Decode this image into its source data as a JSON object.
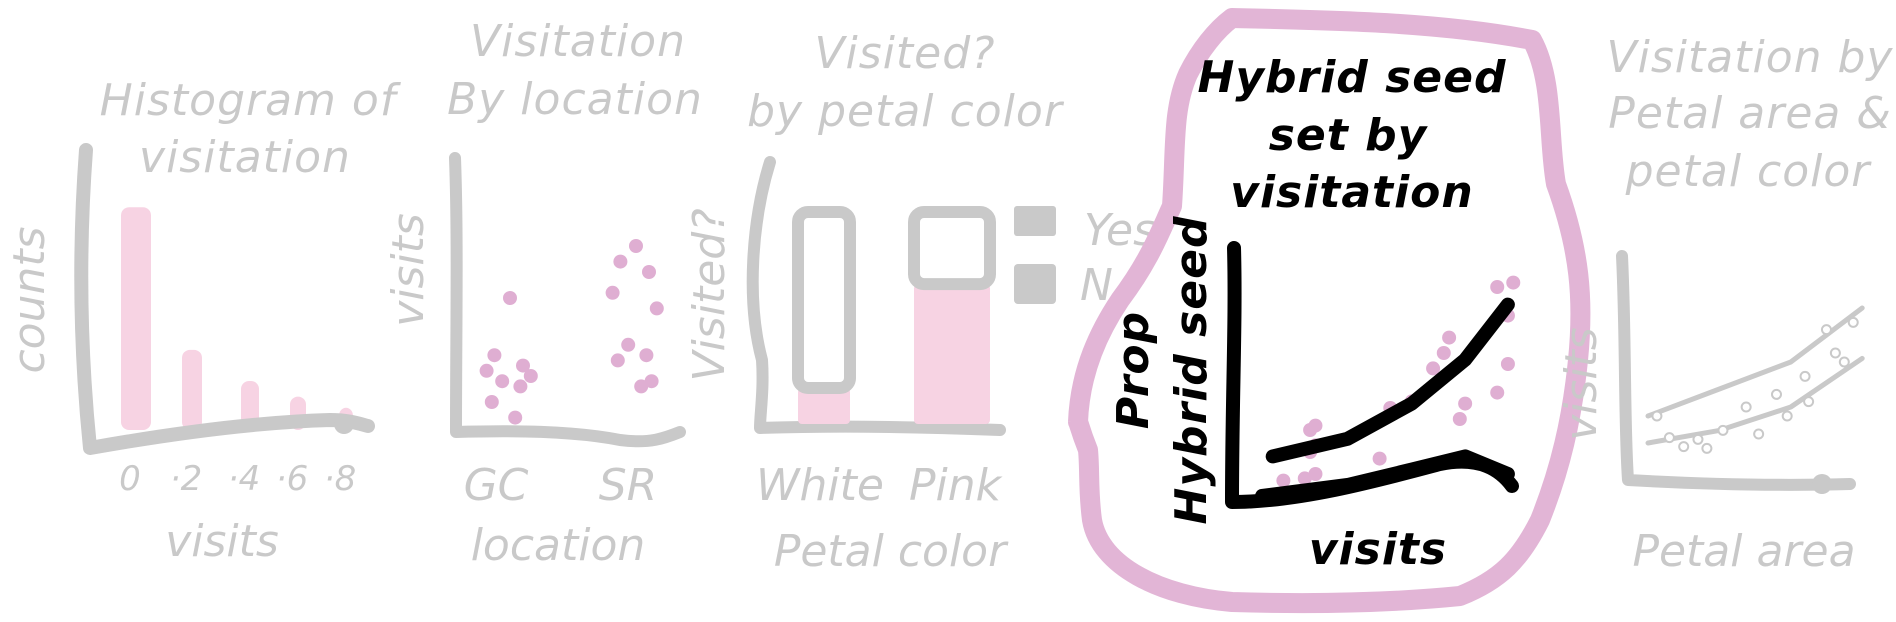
{
  "colors": {
    "grey": "#c9c9c9",
    "pink_bar": "#f7d3e3",
    "pink_dot": "#dfaed2",
    "highlight_outline": "#e2b5d6",
    "black": "#000000"
  },
  "panels": {
    "histogram": {
      "title_line1": "Histogram of",
      "title_line2": "visitation",
      "ylabel": "counts",
      "xlabel": "visits",
      "ticks": [
        "0",
        "·2",
        "·4",
        "·6",
        "·8"
      ]
    },
    "location": {
      "title_line1": "Visitation",
      "title_line2": "By location",
      "ylabel": "visits",
      "xlabel": "location",
      "ticks": [
        "GC",
        "SR"
      ]
    },
    "petal_color": {
      "title_line1": "Visited?",
      "title_line2": "by petal color",
      "ylabel": "Visited?",
      "xlabel": "Petal color",
      "ticks": [
        "White",
        "Pink"
      ],
      "legend": [
        "Yes",
        "N"
      ]
    },
    "hybrid": {
      "title_line1": "Hybrid seed",
      "title_line2": "set by",
      "title_line3": "visitation",
      "ylabel_line1": "Prop",
      "ylabel_line2": "Hybrid seed",
      "xlabel": "visits"
    },
    "petal_area": {
      "title_line1": "Visitation by",
      "title_line2": "Petal area &",
      "title_line3": "petal color",
      "ylabel": "visits",
      "xlabel": "Petal area"
    }
  },
  "chart_data": [
    {
      "type": "bar",
      "categories": [
        "0",
        "·2",
        "·4",
        "·6",
        "·8"
      ],
      "values": [
        100,
        36,
        22,
        15,
        10
      ],
      "ylim": [
        0,
        110
      ],
      "title": "Histogram of visitation",
      "xlabel": "visits",
      "ylabel": "counts"
    },
    {
      "type": "scatter",
      "title": "Visitation By location",
      "xlabel": "location",
      "ylabel": "visits",
      "categories": [
        "GC",
        "SR"
      ],
      "series": [
        {
          "category": "GC",
          "values": [
            2.5,
            1.4,
            1.2,
            1.1,
            1.0,
            0.9,
            0.8,
            0.5,
            0.2
          ]
        },
        {
          "category": "SR",
          "values": [
            3.5,
            3.2,
            3.0,
            2.6,
            2.3,
            1.6,
            1.4,
            1.3,
            0.8,
            0.9
          ]
        }
      ],
      "ylim": [
        0,
        4
      ]
    },
    {
      "type": "bar",
      "title": "Visited? by petal color",
      "xlabel": "Petal color",
      "ylabel": "Visited?",
      "categories": [
        "White",
        "Pink"
      ],
      "series": [
        {
          "name": "Yes",
          "values": [
            0.17,
            0.66
          ]
        },
        {
          "name": "N",
          "values": [
            0.83,
            0.34
          ]
        }
      ],
      "ylim": [
        0,
        1
      ]
    },
    {
      "type": "scatter",
      "title": "Hybrid seed set by visitation",
      "xlabel": "visits",
      "ylabel": "Prop Hybrid seed",
      "points": [
        [
          0.2,
          0.07
        ],
        [
          0.4,
          0.08
        ],
        [
          0.5,
          0.1
        ],
        [
          0.45,
          0.2
        ],
        [
          0.5,
          0.23
        ],
        [
          0.45,
          0.3
        ],
        [
          0.5,
          0.32
        ],
        [
          1.1,
          0.17
        ],
        [
          1.2,
          0.4
        ],
        [
          1.4,
          0.43
        ],
        [
          1.6,
          0.58
        ],
        [
          1.7,
          0.65
        ],
        [
          1.75,
          0.72
        ],
        [
          1.85,
          0.35
        ],
        [
          1.9,
          0.42
        ],
        [
          2.2,
          0.47
        ],
        [
          2.3,
          0.6
        ],
        [
          2.3,
          0.82
        ],
        [
          2.2,
          0.95
        ],
        [
          2.35,
          0.97
        ]
      ],
      "fit_lines": [
        {
          "x": [
            0.1,
            0.8,
            1.4,
            1.9,
            2.3
          ],
          "y": [
            0.18,
            0.26,
            0.42,
            0.62,
            0.87
          ]
        },
        {
          "x": [
            0.0,
            0.8,
            1.4,
            1.9,
            2.3
          ],
          "y": [
            0.0,
            0.05,
            0.12,
            0.18,
            0.1
          ]
        }
      ],
      "xlim": [
        0,
        2.6
      ],
      "ylim": [
        0,
        1.2
      ]
    },
    {
      "type": "scatter",
      "title": "Visitation by Petal area & petal color",
      "xlabel": "Petal area",
      "ylabel": "visits",
      "points": [
        [
          0.05,
          0.3
        ],
        [
          0.12,
          0.18
        ],
        [
          0.2,
          0.13
        ],
        [
          0.28,
          0.17
        ],
        [
          0.33,
          0.12
        ],
        [
          0.42,
          0.22
        ],
        [
          0.55,
          0.35
        ],
        [
          0.62,
          0.2
        ],
        [
          0.72,
          0.42
        ],
        [
          0.78,
          0.3
        ],
        [
          0.88,
          0.52
        ],
        [
          0.9,
          0.38
        ],
        [
          1.0,
          0.78
        ],
        [
          1.05,
          0.65
        ],
        [
          1.15,
          0.82
        ],
        [
          1.1,
          0.6
        ]
      ],
      "fit_lines": [
        {
          "x": [
            0.0,
            0.4,
            0.8,
            1.2
          ],
          "y": [
            0.3,
            0.45,
            0.6,
            0.9
          ]
        },
        {
          "x": [
            0.0,
            0.4,
            0.8,
            1.2
          ],
          "y": [
            0.15,
            0.22,
            0.35,
            0.62
          ]
        }
      ],
      "xlim": [
        0,
        1.3
      ],
      "ylim": [
        0,
        1
      ]
    }
  ]
}
